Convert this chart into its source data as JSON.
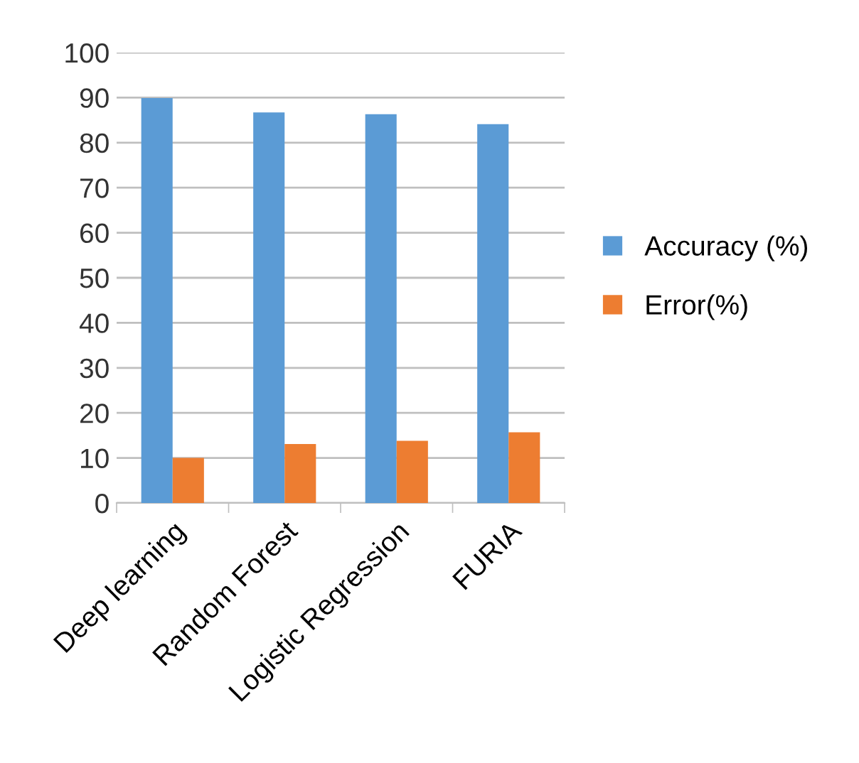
{
  "chart_data": {
    "type": "bar",
    "categories": [
      "Deep learning",
      "Random Forest",
      "Logistic Regression",
      "FURIA"
    ],
    "series": [
      {
        "name": "Accuracy (%)",
        "color": "#5b9bd5",
        "values": [
          89.9,
          86.7,
          86.3,
          84.1
        ]
      },
      {
        "name": "Error(%)",
        "color": "#ed7d31",
        "values": [
          10.0,
          13.1,
          13.8,
          15.7
        ]
      }
    ],
    "ylim": [
      0,
      100
    ],
    "yticks": [
      0,
      10,
      20,
      30,
      40,
      50,
      60,
      70,
      80,
      90,
      100
    ],
    "grid": "y",
    "legend": "right"
  }
}
